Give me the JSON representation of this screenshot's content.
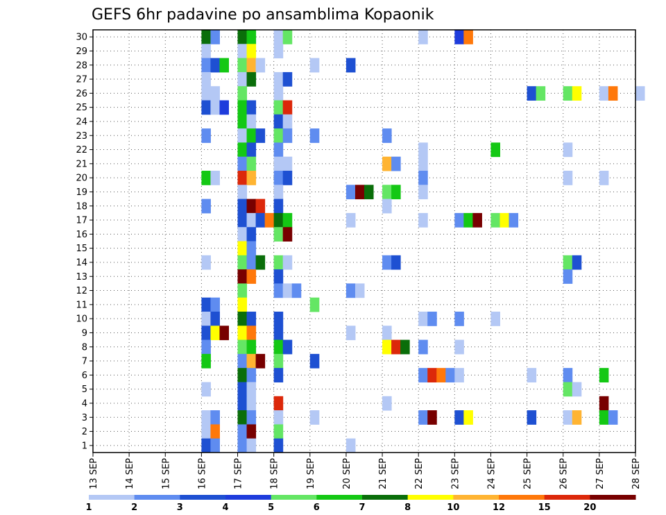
{
  "chart_data": {
    "type": "heatmap",
    "title": "GEFS 6hr padavine po ansamblima Kopaonik",
    "x_labels": [
      "13 SEP",
      "14 SEP",
      "15 SEP",
      "16 SEP",
      "17 SEP",
      "18 SEP",
      "19 SEP",
      "20 SEP",
      "21 SEP",
      "22 SEP",
      "23 SEP",
      "24 SEP",
      "25 SEP",
      "26 SEP",
      "27 SEP",
      "28 SEP"
    ],
    "y_labels": [
      "1",
      "2",
      "3",
      "4",
      "5",
      "6",
      "7",
      "8",
      "9",
      "10",
      "11",
      "12",
      "13",
      "14",
      "15",
      "16",
      "17",
      "18",
      "19",
      "20",
      "21",
      "22",
      "23",
      "24",
      "25",
      "26",
      "27",
      "28",
      "29",
      "30"
    ],
    "ylim": [
      1,
      30
    ],
    "grid": true,
    "colorbar": {
      "labels": [
        "1",
        "2",
        "3",
        "4",
        "5",
        "6",
        "7",
        "8",
        "10",
        "12",
        "15",
        "20"
      ],
      "colors": [
        "#b4c8f5",
        "#5f8cf0",
        "#1e50d2",
        "#1e3cdc",
        "#64e664",
        "#14c814",
        "#0a6e0a",
        "#ffff00",
        "#ffb432",
        "#ff780a",
        "#dc280a",
        "#780000"
      ]
    },
    "cells": [
      {
        "x": "16 SEP",
        "m": 30,
        "v": 7
      },
      {
        "x": "16 SEP",
        "m": 30,
        "v": 2
      },
      {
        "x": "17 SEP",
        "m": 30,
        "v": 7
      },
      {
        "x": "17 SEP",
        "m": 30,
        "v": 6
      },
      {
        "x": "18 SEP",
        "m": 30,
        "v": 1
      },
      {
        "x": "18 SEP",
        "m": 30,
        "v": 5
      },
      {
        "x": "22 SEP",
        "m": 30,
        "v": 1
      },
      {
        "x": "23 SEP",
        "m": 30,
        "v": 4
      },
      {
        "x": "23 SEP",
        "m": 30,
        "v": 12
      },
      {
        "x": "16 SEP",
        "m": 29,
        "v": 1
      },
      {
        "x": "17 SEP",
        "m": 29,
        "v": 1
      },
      {
        "x": "17 SEP",
        "m": 29,
        "v": 8
      },
      {
        "x": "18 SEP",
        "m": 29,
        "v": 1
      },
      {
        "x": "16 SEP",
        "m": 28,
        "v": 2
      },
      {
        "x": "16 SEP",
        "m": 28,
        "v": 3
      },
      {
        "x": "16 SEP",
        "m": 28,
        "v": 6
      },
      {
        "x": "17 SEP",
        "m": 28,
        "v": 5
      },
      {
        "x": "17 SEP",
        "m": 28,
        "v": 10
      },
      {
        "x": "17 SEP",
        "m": 28,
        "v": 1
      },
      {
        "x": "19 SEP",
        "m": 28,
        "v": 1
      },
      {
        "x": "20 SEP",
        "m": 28,
        "v": 3
      },
      {
        "x": "16 SEP",
        "m": 27,
        "v": 1
      },
      {
        "x": "17 SEP",
        "m": 27,
        "v": 1
      },
      {
        "x": "17 SEP",
        "m": 27,
        "v": 7
      },
      {
        "x": "18 SEP",
        "m": 27,
        "v": 1
      },
      {
        "x": "18 SEP",
        "m": 27,
        "v": 3
      },
      {
        "x": "16 SEP",
        "m": 26,
        "v": 1
      },
      {
        "x": "16 SEP",
        "m": 26,
        "v": 1
      },
      {
        "x": "17 SEP",
        "m": 26,
        "v": 5
      },
      {
        "x": "18 SEP",
        "m": 26,
        "v": 1
      },
      {
        "x": "25 SEP",
        "m": 26,
        "v": 3
      },
      {
        "x": "25 SEP",
        "m": 26,
        "v": 5
      },
      {
        "x": "26 SEP",
        "m": 26,
        "v": 5
      },
      {
        "x": "26 SEP",
        "m": 26,
        "v": 8
      },
      {
        "x": "27 SEP",
        "m": 26,
        "v": 1
      },
      {
        "x": "27 SEP",
        "m": 26,
        "v": 12
      },
      {
        "x": "28 SEP",
        "m": 26,
        "v": 1
      },
      {
        "x": "16 SEP",
        "m": 25,
        "v": 3
      },
      {
        "x": "16 SEP",
        "m": 25,
        "v": 1
      },
      {
        "x": "16 SEP",
        "m": 25,
        "v": 4
      },
      {
        "x": "17 SEP",
        "m": 25,
        "v": 6
      },
      {
        "x": "17 SEP",
        "m": 25,
        "v": 3
      },
      {
        "x": "18 SEP",
        "m": 25,
        "v": 5
      },
      {
        "x": "18 SEP",
        "m": 25,
        "v": 15
      },
      {
        "x": "17 SEP",
        "m": 24,
        "v": 6
      },
      {
        "x": "17 SEP",
        "m": 24,
        "v": 1
      },
      {
        "x": "18 SEP",
        "m": 24,
        "v": 3
      },
      {
        "x": "18 SEP",
        "m": 24,
        "v": 1
      },
      {
        "x": "16 SEP",
        "m": 23,
        "v": 2
      },
      {
        "x": "17 SEP",
        "m": 23,
        "v": 1
      },
      {
        "x": "17 SEP",
        "m": 23,
        "v": 6
      },
      {
        "x": "17 SEP",
        "m": 23,
        "v": 3
      },
      {
        "x": "18 SEP",
        "m": 23,
        "v": 5
      },
      {
        "x": "18 SEP",
        "m": 23,
        "v": 2
      },
      {
        "x": "19 SEP",
        "m": 23,
        "v": 2
      },
      {
        "x": "21 SEP",
        "m": 23,
        "v": 2
      },
      {
        "x": "17 SEP",
        "m": 22,
        "v": 6
      },
      {
        "x": "17 SEP",
        "m": 22,
        "v": 3
      },
      {
        "x": "18 SEP",
        "m": 22,
        "v": 2
      },
      {
        "x": "22 SEP",
        "m": 22,
        "v": 1
      },
      {
        "x": "24 SEP",
        "m": 22,
        "v": 6
      },
      {
        "x": "26 SEP",
        "m": 22,
        "v": 1
      },
      {
        "x": "17 SEP",
        "m": 21,
        "v": 2
      },
      {
        "x": "17 SEP",
        "m": 21,
        "v": 5
      },
      {
        "x": "18 SEP",
        "m": 21,
        "v": 1
      },
      {
        "x": "18 SEP",
        "m": 21,
        "v": 1
      },
      {
        "x": "21 SEP",
        "m": 21,
        "v": 10
      },
      {
        "x": "21 SEP",
        "m": 21,
        "v": 2
      },
      {
        "x": "22 SEP",
        "m": 21,
        "v": 1
      },
      {
        "x": "16 SEP",
        "m": 20,
        "v": 6
      },
      {
        "x": "16 SEP",
        "m": 20,
        "v": 1
      },
      {
        "x": "17 SEP",
        "m": 20,
        "v": 15
      },
      {
        "x": "17 SEP",
        "m": 20,
        "v": 10
      },
      {
        "x": "18 SEP",
        "m": 20,
        "v": 2
      },
      {
        "x": "18 SEP",
        "m": 20,
        "v": 3
      },
      {
        "x": "22 SEP",
        "m": 20,
        "v": 2
      },
      {
        "x": "26 SEP",
        "m": 20,
        "v": 1
      },
      {
        "x": "27 SEP",
        "m": 20,
        "v": 1
      },
      {
        "x": "17 SEP",
        "m": 19,
        "v": 1
      },
      {
        "x": "18 SEP",
        "m": 19,
        "v": 1
      },
      {
        "x": "20 SEP",
        "m": 19,
        "v": 2
      },
      {
        "x": "20 SEP",
        "m": 19,
        "v": 20
      },
      {
        "x": "20 SEP",
        "m": 19,
        "v": 7
      },
      {
        "x": "21 SEP",
        "m": 19,
        "v": 5
      },
      {
        "x": "21 SEP",
        "m": 19,
        "v": 6
      },
      {
        "x": "22 SEP",
        "m": 19,
        "v": 1
      },
      {
        "x": "16 SEP",
        "m": 18,
        "v": 2
      },
      {
        "x": "17 SEP",
        "m": 18,
        "v": 3
      },
      {
        "x": "17 SEP",
        "m": 18,
        "v": 20
      },
      {
        "x": "17 SEP",
        "m": 18,
        "v": 15
      },
      {
        "x": "18 SEP",
        "m": 18,
        "v": 3
      },
      {
        "x": "21 SEP",
        "m": 18,
        "v": 1
      },
      {
        "x": "17 SEP",
        "m": 17,
        "v": 3
      },
      {
        "x": "17 SEP",
        "m": 17,
        "v": 1
      },
      {
        "x": "17 SEP",
        "m": 17,
        "v": 3
      },
      {
        "x": "17 SEP",
        "m": 17,
        "v": 12
      },
      {
        "x": "18 SEP",
        "m": 17,
        "v": 7
      },
      {
        "x": "18 SEP",
        "m": 17,
        "v": 6
      },
      {
        "x": "20 SEP",
        "m": 17,
        "v": 1
      },
      {
        "x": "22 SEP",
        "m": 17,
        "v": 1
      },
      {
        "x": "23 SEP",
        "m": 17,
        "v": 2
      },
      {
        "x": "23 SEP",
        "m": 17,
        "v": 6
      },
      {
        "x": "23 SEP",
        "m": 17,
        "v": 20
      },
      {
        "x": "24 SEP",
        "m": 17,
        "v": 5
      },
      {
        "x": "24 SEP",
        "m": 17,
        "v": 8
      },
      {
        "x": "24 SEP",
        "m": 17,
        "v": 2
      },
      {
        "x": "17 SEP",
        "m": 16,
        "v": 1
      },
      {
        "x": "17 SEP",
        "m": 16,
        "v": 3
      },
      {
        "x": "18 SEP",
        "m": 16,
        "v": 5
      },
      {
        "x": "18 SEP",
        "m": 16,
        "v": 20
      },
      {
        "x": "17 SEP",
        "m": 15,
        "v": 8
      },
      {
        "x": "17 SEP",
        "m": 15,
        "v": 2
      },
      {
        "x": "16 SEP",
        "m": 14,
        "v": 1
      },
      {
        "x": "17 SEP",
        "m": 14,
        "v": 5
      },
      {
        "x": "17 SEP",
        "m": 14,
        "v": 2
      },
      {
        "x": "17 SEP",
        "m": 14,
        "v": 7
      },
      {
        "x": "18 SEP",
        "m": 14,
        "v": 5
      },
      {
        "x": "18 SEP",
        "m": 14,
        "v": 1
      },
      {
        "x": "21 SEP",
        "m": 14,
        "v": 2
      },
      {
        "x": "21 SEP",
        "m": 14,
        "v": 3
      },
      {
        "x": "26 SEP",
        "m": 14,
        "v": 5
      },
      {
        "x": "26 SEP",
        "m": 14,
        "v": 3
      },
      {
        "x": "17 SEP",
        "m": 13,
        "v": 20
      },
      {
        "x": "17 SEP",
        "m": 13,
        "v": 12
      },
      {
        "x": "18 SEP",
        "m": 13,
        "v": 3
      },
      {
        "x": "26 SEP",
        "m": 13,
        "v": 2
      },
      {
        "x": "17 SEP",
        "m": 12,
        "v": 5
      },
      {
        "x": "18 SEP",
        "m": 12,
        "v": 2
      },
      {
        "x": "18 SEP",
        "m": 12,
        "v": 1
      },
      {
        "x": "18 SEP",
        "m": 12,
        "v": 2
      },
      {
        "x": "20 SEP",
        "m": 12,
        "v": 2
      },
      {
        "x": "20 SEP",
        "m": 12,
        "v": 1
      },
      {
        "x": "16 SEP",
        "m": 11,
        "v": 3
      },
      {
        "x": "16 SEP",
        "m": 11,
        "v": 2
      },
      {
        "x": "17 SEP",
        "m": 11,
        "v": 8
      },
      {
        "x": "19 SEP",
        "m": 11,
        "v": 5
      },
      {
        "x": "16 SEP",
        "m": 10,
        "v": 1
      },
      {
        "x": "16 SEP",
        "m": 10,
        "v": 3
      },
      {
        "x": "17 SEP",
        "m": 10,
        "v": 7
      },
      {
        "x": "17 SEP",
        "m": 10,
        "v": 3
      },
      {
        "x": "18 SEP",
        "m": 10,
        "v": 3
      },
      {
        "x": "22 SEP",
        "m": 10,
        "v": 1
      },
      {
        "x": "22 SEP",
        "m": 10,
        "v": 2
      },
      {
        "x": "23 SEP",
        "m": 10,
        "v": 2
      },
      {
        "x": "24 SEP",
        "m": 10,
        "v": 1
      },
      {
        "x": "16 SEP",
        "m": 9,
        "v": 3
      },
      {
        "x": "16 SEP",
        "m": 9,
        "v": 8
      },
      {
        "x": "16 SEP",
        "m": 9,
        "v": 20
      },
      {
        "x": "17 SEP",
        "m": 9,
        "v": 8
      },
      {
        "x": "17 SEP",
        "m": 9,
        "v": 12
      },
      {
        "x": "18 SEP",
        "m": 9,
        "v": 3
      },
      {
        "x": "20 SEP",
        "m": 9,
        "v": 1
      },
      {
        "x": "21 SEP",
        "m": 9,
        "v": 1
      },
      {
        "x": "16 SEP",
        "m": 8,
        "v": 2
      },
      {
        "x": "17 SEP",
        "m": 8,
        "v": 5
      },
      {
        "x": "17 SEP",
        "m": 8,
        "v": 6
      },
      {
        "x": "18 SEP",
        "m": 8,
        "v": 6
      },
      {
        "x": "18 SEP",
        "m": 8,
        "v": 3
      },
      {
        "x": "21 SEP",
        "m": 8,
        "v": 8
      },
      {
        "x": "21 SEP",
        "m": 8,
        "v": 15
      },
      {
        "x": "21 SEP",
        "m": 8,
        "v": 7
      },
      {
        "x": "22 SEP",
        "m": 8,
        "v": 2
      },
      {
        "x": "23 SEP",
        "m": 8,
        "v": 1
      },
      {
        "x": "16 SEP",
        "m": 7,
        "v": 6
      },
      {
        "x": "17 SEP",
        "m": 7,
        "v": 2
      },
      {
        "x": "17 SEP",
        "m": 7,
        "v": 10
      },
      {
        "x": "17 SEP",
        "m": 7,
        "v": 20
      },
      {
        "x": "18 SEP",
        "m": 7,
        "v": 5
      },
      {
        "x": "19 SEP",
        "m": 7,
        "v": 3
      },
      {
        "x": "17 SEP",
        "m": 6,
        "v": 7
      },
      {
        "x": "17 SEP",
        "m": 6,
        "v": 2
      },
      {
        "x": "18 SEP",
        "m": 6,
        "v": 3
      },
      {
        "x": "22 SEP",
        "m": 6,
        "v": 2
      },
      {
        "x": "22 SEP",
        "m": 6,
        "v": 15
      },
      {
        "x": "22 SEP",
        "m": 6,
        "v": 12
      },
      {
        "x": "22 SEP",
        "m": 6,
        "v": 2
      },
      {
        "x": "23 SEP",
        "m": 6,
        "v": 1
      },
      {
        "x": "25 SEP",
        "m": 6,
        "v": 1
      },
      {
        "x": "26 SEP",
        "m": 6,
        "v": 2
      },
      {
        "x": "27 SEP",
        "m": 6,
        "v": 6
      },
      {
        "x": "16 SEP",
        "m": 5,
        "v": 1
      },
      {
        "x": "17 SEP",
        "m": 5,
        "v": 3
      },
      {
        "x": "17 SEP",
        "m": 5,
        "v": 1
      },
      {
        "x": "26 SEP",
        "m": 5,
        "v": 5
      },
      {
        "x": "26 SEP",
        "m": 5,
        "v": 1
      },
      {
        "x": "17 SEP",
        "m": 4,
        "v": 3
      },
      {
        "x": "17 SEP",
        "m": 4,
        "v": 1
      },
      {
        "x": "18 SEP",
        "m": 4,
        "v": 15
      },
      {
        "x": "21 SEP",
        "m": 4,
        "v": 1
      },
      {
        "x": "27 SEP",
        "m": 4,
        "v": 20
      },
      {
        "x": "16 SEP",
        "m": 3,
        "v": 1
      },
      {
        "x": "16 SEP",
        "m": 3,
        "v": 2
      },
      {
        "x": "17 SEP",
        "m": 3,
        "v": 7
      },
      {
        "x": "17 SEP",
        "m": 3,
        "v": 2
      },
      {
        "x": "18 SEP",
        "m": 3,
        "v": 1
      },
      {
        "x": "19 SEP",
        "m": 3,
        "v": 1
      },
      {
        "x": "22 SEP",
        "m": 3,
        "v": 2
      },
      {
        "x": "22 SEP",
        "m": 3,
        "v": 20
      },
      {
        "x": "23 SEP",
        "m": 3,
        "v": 3
      },
      {
        "x": "23 SEP",
        "m": 3,
        "v": 8
      },
      {
        "x": "25 SEP",
        "m": 3,
        "v": 3
      },
      {
        "x": "26 SEP",
        "m": 3,
        "v": 1
      },
      {
        "x": "26 SEP",
        "m": 3,
        "v": 10
      },
      {
        "x": "27 SEP",
        "m": 3,
        "v": 6
      },
      {
        "x": "27 SEP",
        "m": 3,
        "v": 2
      },
      {
        "x": "16 SEP",
        "m": 2,
        "v": 1
      },
      {
        "x": "16 SEP",
        "m": 2,
        "v": 12
      },
      {
        "x": "17 SEP",
        "m": 2,
        "v": 2
      },
      {
        "x": "17 SEP",
        "m": 2,
        "v": 20
      },
      {
        "x": "18 SEP",
        "m": 2,
        "v": 5
      },
      {
        "x": "16 SEP",
        "m": 1,
        "v": 3
      },
      {
        "x": "16 SEP",
        "m": 1,
        "v": 2
      },
      {
        "x": "17 SEP",
        "m": 1,
        "v": 2
      },
      {
        "x": "17 SEP",
        "m": 1,
        "v": 1
      },
      {
        "x": "18 SEP",
        "m": 1,
        "v": 3
      },
      {
        "x": "20 SEP",
        "m": 1,
        "v": 1
      }
    ]
  }
}
